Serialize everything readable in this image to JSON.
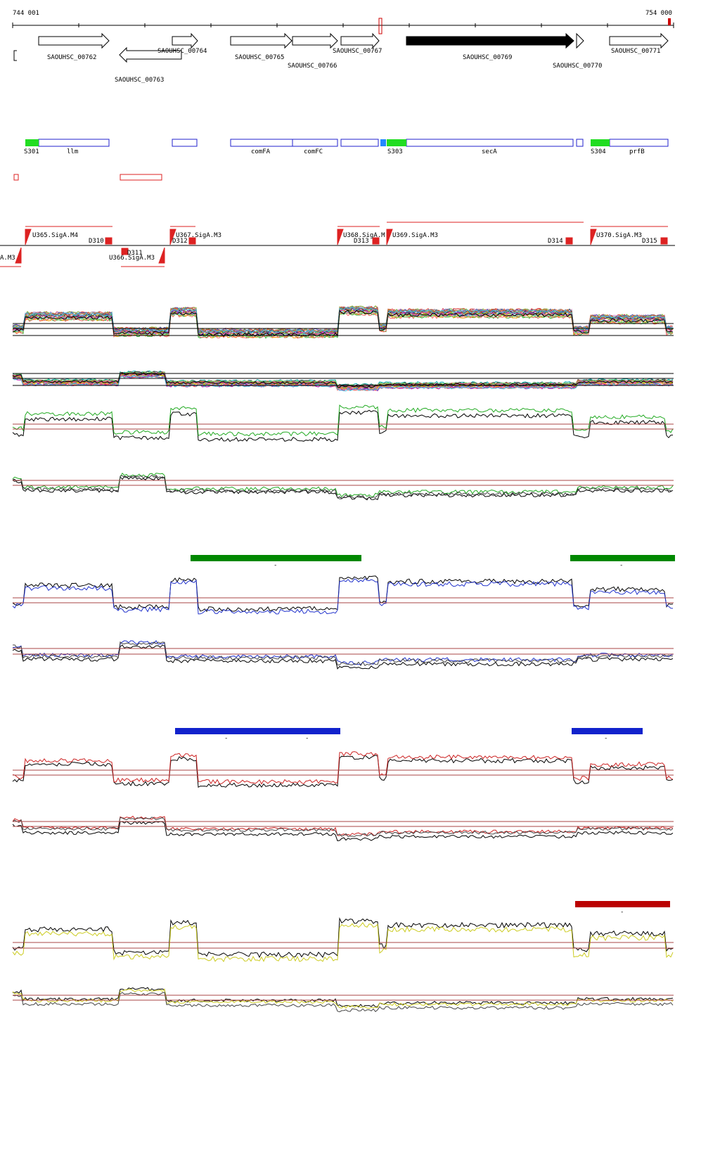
{
  "ruler": {
    "start": "744 001",
    "end": "754 000"
  },
  "genes": [
    "SAOUHSC_00762",
    "SAOUHSC_00763",
    "SAOUHSC_00764",
    "SAOUHSC_00765",
    "SAOUHSC_00766",
    "SAOUHSC_00767",
    "SAOUHSC_00769",
    "SAOUHSC_00770",
    "SAOUHSC_00771"
  ],
  "features": [
    "S301",
    "llm",
    "comFA",
    "comFC",
    "S303",
    "secA",
    "S304",
    "prfB"
  ],
  "promoters": [
    "A.M3",
    "U365.SigA.M4",
    "D310",
    "D311",
    "U366.SigA.M3",
    "U367.SigA.M3",
    "D312",
    "U368.SigA.M",
    "D313",
    "U369.SigA.M3",
    "D314",
    "U370.SigA.M3",
    "D315"
  ],
  "markers": [
    "-",
    "-",
    "-",
    "-",
    "-",
    "-"
  ]
}
